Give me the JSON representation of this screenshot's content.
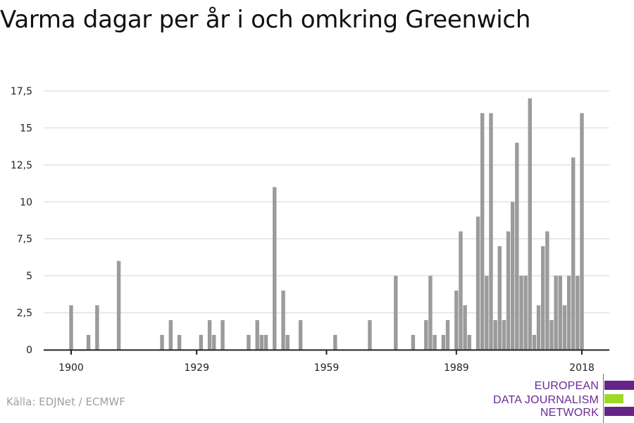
{
  "title": "Varma dagar per år i och omkring Greenwich",
  "source": "Källa: EDJNet / ECMWF",
  "logo": {
    "line1": "EUROPEAN",
    "line2": "DATA JOURNALISM",
    "line3": "NETWORK",
    "purple": "#652586",
    "green": "#9ed928"
  },
  "colors": {
    "bar": "#9b9b9b",
    "grid": "#e2e2e2",
    "axis": "#222222",
    "tick_text": "#222222"
  },
  "chart_data": {
    "type": "bar",
    "title": "Varma dagar per år i och omkring Greenwich",
    "xlabel": "",
    "ylabel": "",
    "xlim": [
      1900,
      2018
    ],
    "ylim": [
      0,
      17.5
    ],
    "x_ticks": [
      1900,
      1929,
      1959,
      1989,
      2018
    ],
    "x_tick_labels": [
      "1900",
      "1929",
      "1959",
      "1989",
      "2018"
    ],
    "y_ticks": [
      0,
      2.5,
      5,
      7.5,
      10,
      12.5,
      15,
      17.5
    ],
    "y_tick_labels": [
      "0",
      "2,5",
      "5",
      "7,5",
      "10",
      "12,5",
      "15",
      "17,5"
    ],
    "grid": true,
    "years": [
      1900,
      1904,
      1906,
      1911,
      1921,
      1923,
      1925,
      1930,
      1932,
      1933,
      1935,
      1941,
      1943,
      1944,
      1945,
      1947,
      1949,
      1950,
      1953,
      1961,
      1969,
      1975,
      1979,
      1982,
      1983,
      1984,
      1986,
      1987,
      1989,
      1990,
      1991,
      1992,
      1994,
      1995,
      1996,
      1997,
      1998,
      1999,
      2000,
      2001,
      2002,
      2003,
      2004,
      2005,
      2006,
      2007,
      2008,
      2009,
      2010,
      2011,
      2012,
      2013,
      2014,
      2015,
      2016,
      2017,
      2018
    ],
    "values": [
      3,
      1,
      3,
      6,
      1,
      2,
      1,
      1,
      2,
      1,
      2,
      1,
      2,
      1,
      1,
      11,
      4,
      1,
      2,
      1,
      2,
      5,
      1,
      2,
      5,
      1,
      1,
      2,
      4,
      8,
      3,
      1,
      9,
      16,
      5,
      16,
      2,
      7,
      2,
      8,
      10,
      14,
      5,
      5,
      17,
      1,
      3,
      7,
      8,
      2,
      5,
      5,
      3,
      5,
      13,
      5,
      16
    ]
  }
}
